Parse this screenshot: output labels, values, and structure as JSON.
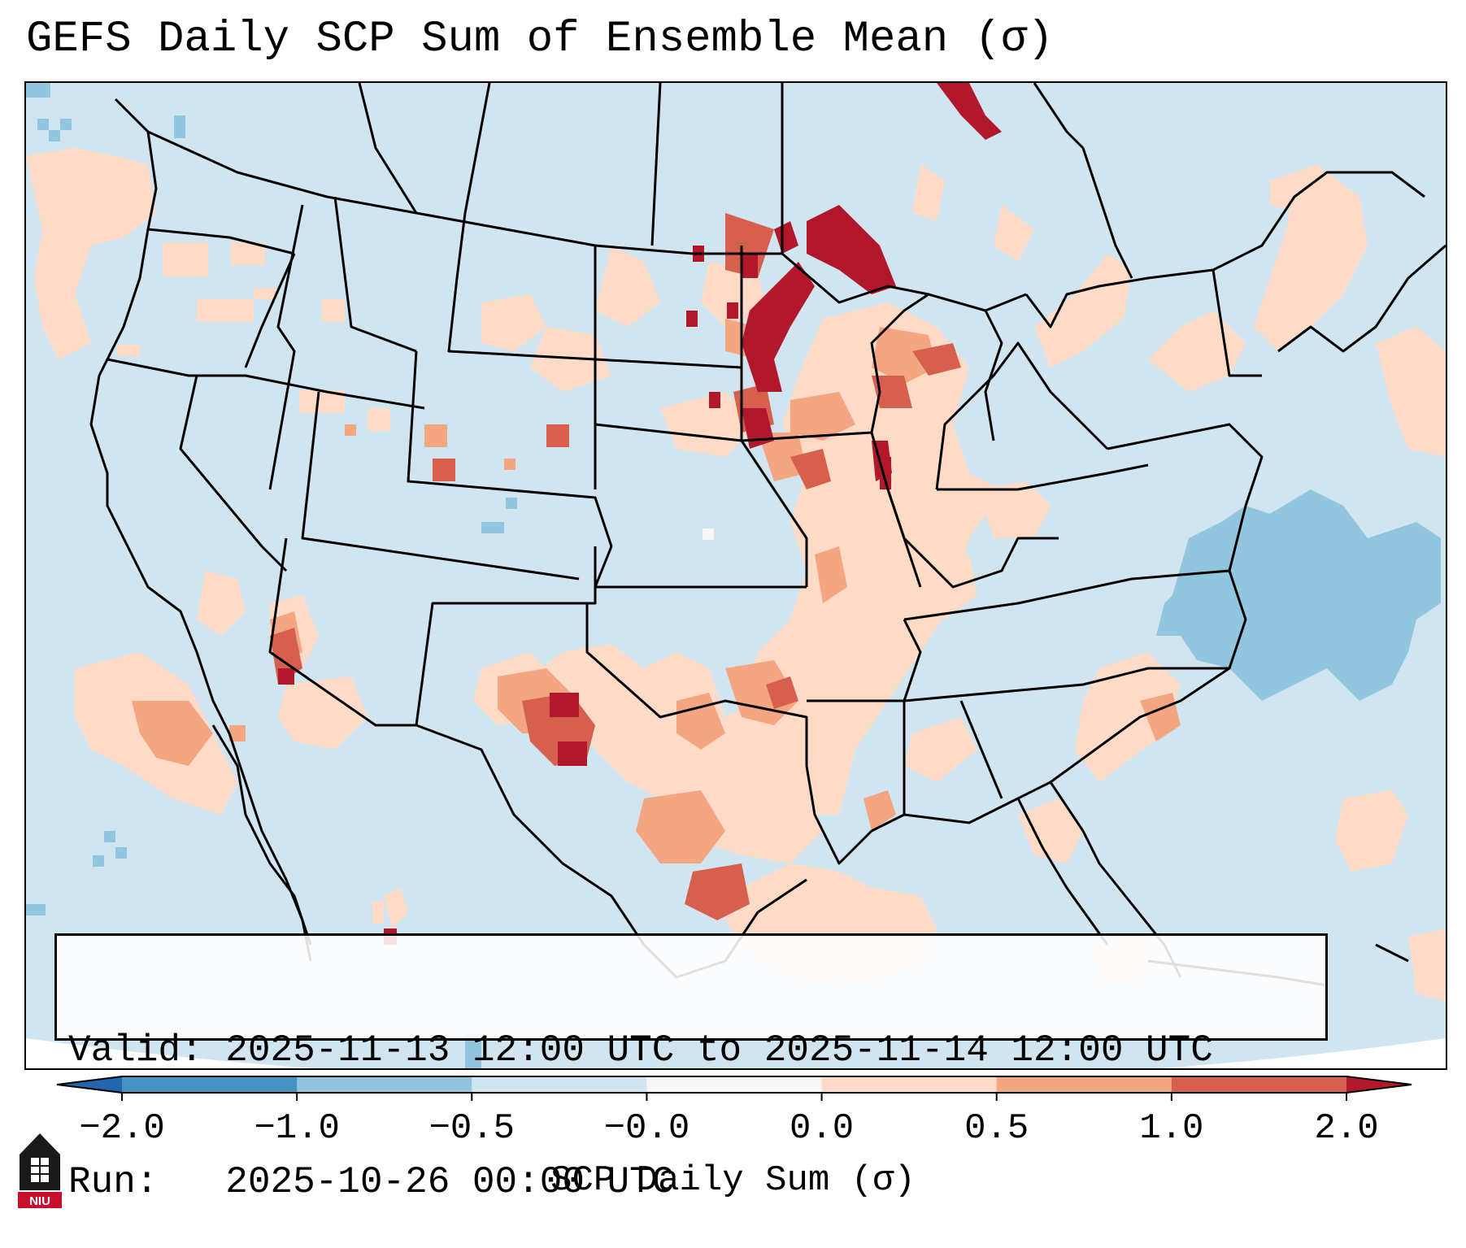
{
  "title": "GEFS Daily SCP Sum of Ensemble Mean (σ)",
  "info": {
    "valid_label": "Valid:",
    "valid_value": "2025-11-13 12:00 UTC to 2025-11-14 12:00 UTC",
    "run_label": "Run:",
    "run_value": "2025-10-26 00:00 UTC"
  },
  "colorbar": {
    "label": "SCP Daily Sum (σ)",
    "ticks": [
      "−2.0",
      "−1.0",
      "−0.5",
      "−0.0",
      "0.0",
      "0.5",
      "1.0",
      "2.0"
    ],
    "colors": {
      "below": "#2166ac",
      "bin_neg2_neg1": "#4393c3",
      "bin_neg1_neg05": "#92c5de",
      "bin_neg05_0": "#d1e5f0",
      "bin_zero": "#f7f7f7",
      "bin_0_05": "#fddbc7",
      "bin_05_1": "#f4a582",
      "bin_1_2": "#d6604d",
      "above": "#b2182b"
    }
  },
  "logo_text": "NIU",
  "logo_color": "#c8102e"
}
